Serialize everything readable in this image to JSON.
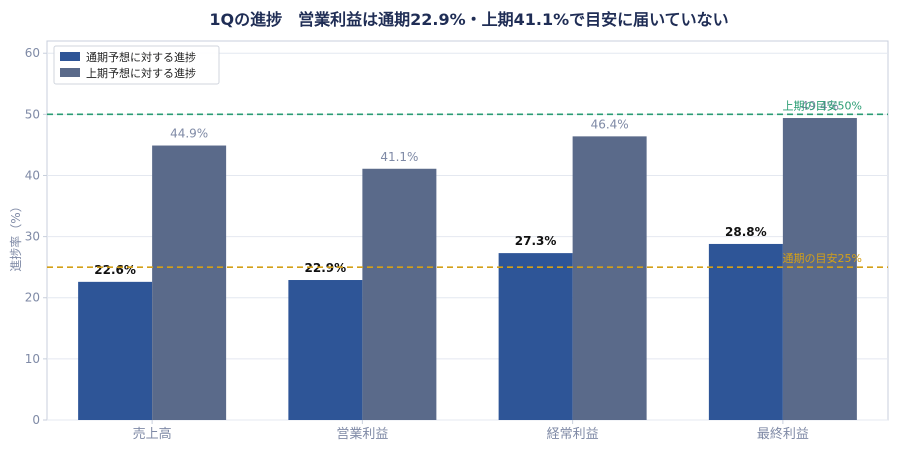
{
  "colors": {
    "title": "#1f2d55",
    "series1": "#2e5597",
    "series2": "#5a6a8a",
    "grid": "#e4e8f0",
    "axis": "#c8cfdc",
    "upper_ref": "#2a9d73",
    "full_ref": "#d4a017"
  },
  "chart_data": {
    "type": "bar",
    "title": "1Qの進捗　営業利益は通期22.9%・上期41.1%で目安に届いていない",
    "xlabel": "",
    "ylabel": "進捗率（%）",
    "categories": [
      "売上高",
      "営業利益",
      "経常利益",
      "最終利益"
    ],
    "series": [
      {
        "name": "通期予想に対する進捗",
        "values": [
          22.6,
          22.9,
          27.3,
          28.8
        ],
        "labels": [
          "22.6%",
          "22.9%",
          "27.3%",
          "28.8%"
        ]
      },
      {
        "name": "上期予想に対する進捗",
        "values": [
          44.9,
          41.1,
          46.4,
          49.4
        ],
        "labels": [
          "44.9%",
          "41.1%",
          "46.4%",
          "49.4%"
        ]
      }
    ],
    "ylim": [
      0,
      62
    ],
    "yticks": [
      0,
      10,
      20,
      30,
      40,
      50,
      60
    ],
    "grid": true,
    "legend_position": "top-left",
    "reference_lines": [
      {
        "value": 50,
        "label": "上期の目安50%",
        "style": "dashed"
      },
      {
        "value": 25,
        "label": "通期の目安25%",
        "style": "dashed"
      }
    ]
  }
}
